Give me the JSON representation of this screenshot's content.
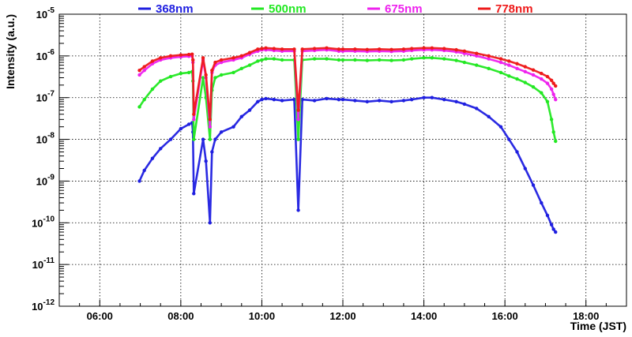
{
  "chart_data": {
    "type": "scatter",
    "title": "",
    "xlabel": "Time (JST)",
    "ylabel": "Intensity (a.u.)",
    "x_unit": "hour of day",
    "xlim": [
      5.0,
      19.0
    ],
    "ylim_log10": [
      -12,
      -5
    ],
    "y_scale": "log",
    "grid": true,
    "x_ticks": [
      {
        "value": 6,
        "label": "06:00"
      },
      {
        "value": 8,
        "label": "08:00"
      },
      {
        "value": 10,
        "label": "10:00"
      },
      {
        "value": 12,
        "label": "12:00"
      },
      {
        "value": 14,
        "label": "14:00"
      },
      {
        "value": 16,
        "label": "16:00"
      },
      {
        "value": 18,
        "label": "18:00"
      }
    ],
    "y_ticks": [
      {
        "exp": -5,
        "base": "10",
        "power": "-5"
      },
      {
        "exp": -6,
        "base": "10",
        "power": "-6"
      },
      {
        "exp": -7,
        "base": "10",
        "power": "-7"
      },
      {
        "exp": -8,
        "base": "10",
        "power": "-8"
      },
      {
        "exp": -9,
        "base": "10",
        "power": "-9"
      },
      {
        "exp": -10,
        "base": "10",
        "power": "-10"
      },
      {
        "exp": -11,
        "base": "10",
        "power": "-11"
      },
      {
        "exp": -12,
        "base": "10",
        "power": "-12"
      }
    ],
    "legend_position": "top",
    "series": [
      {
        "name": "368nm",
        "color": "#1f1fe0",
        "x": [
          6.98,
          7.1,
          7.3,
          7.5,
          7.75,
          8.0,
          8.2,
          8.28,
          8.3,
          8.32,
          8.55,
          8.62,
          8.72,
          8.77,
          8.85,
          9.0,
          9.3,
          9.5,
          9.7,
          9.9,
          10.0,
          10.1,
          10.3,
          10.5,
          10.8,
          10.9,
          11.0,
          11.3,
          11.6,
          11.9,
          12.0,
          12.3,
          12.6,
          12.9,
          13.2,
          13.5,
          13.7,
          14.0,
          14.2,
          14.5,
          14.8,
          15.0,
          15.3,
          15.6,
          15.9,
          16.1,
          16.3,
          16.5,
          16.7,
          16.9,
          17.05,
          17.15,
          17.2,
          17.25
        ],
        "y": [
          1e-09,
          1.8e-09,
          3.5e-09,
          6e-09,
          1e-08,
          1.8e-08,
          2.3e-08,
          2.5e-08,
          1.5e-08,
          5e-10,
          1e-08,
          3e-09,
          1e-10,
          5e-09,
          1e-08,
          1.5e-08,
          2e-08,
          3.5e-08,
          5e-08,
          8e-08,
          9e-08,
          9.5e-08,
          9e-08,
          8.5e-08,
          9e-08,
          2e-10,
          9e-08,
          8.5e-08,
          9.5e-08,
          9e-08,
          9e-08,
          8.5e-08,
          8e-08,
          8.5e-08,
          8e-08,
          8.5e-08,
          9e-08,
          1e-07,
          1e-07,
          9e-08,
          8e-08,
          7e-08,
          5.5e-08,
          3.5e-08,
          2e-08,
          1e-08,
          5e-09,
          2e-09,
          8e-10,
          3e-10,
          1.5e-10,
          9e-11,
          7e-11,
          6e-11
        ]
      },
      {
        "name": "500nm",
        "color": "#22e822",
        "x": [
          6.98,
          7.1,
          7.3,
          7.5,
          7.75,
          8.0,
          8.2,
          8.28,
          8.3,
          8.32,
          8.55,
          8.62,
          8.72,
          8.77,
          8.85,
          9.0,
          9.3,
          9.5,
          9.7,
          9.9,
          10.0,
          10.1,
          10.3,
          10.5,
          10.8,
          10.9,
          11.0,
          11.3,
          11.6,
          11.9,
          12.0,
          12.3,
          12.6,
          12.9,
          13.2,
          13.5,
          13.7,
          14.0,
          14.2,
          14.5,
          14.8,
          15.0,
          15.3,
          15.6,
          15.9,
          16.1,
          16.3,
          16.5,
          16.7,
          16.9,
          17.05,
          17.15,
          17.2,
          17.25
        ],
        "y": [
          6e-08,
          9e-08,
          1.6e-07,
          2.5e-07,
          3.2e-07,
          3.8e-07,
          4e-07,
          4.2e-07,
          2.5e-07,
          1e-08,
          3e-07,
          1e-07,
          1e-08,
          1.5e-07,
          3e-07,
          3.5e-07,
          4e-07,
          5e-07,
          6e-07,
          7.5e-07,
          8e-07,
          8.5e-07,
          8.5e-07,
          8e-07,
          8e-07,
          1e-08,
          8e-07,
          8.5e-07,
          8.5e-07,
          8e-07,
          8e-07,
          8e-07,
          7.8e-07,
          8e-07,
          7.8e-07,
          8e-07,
          8.5e-07,
          9e-07,
          9e-07,
          8.5e-07,
          7.8e-07,
          7e-07,
          6e-07,
          5e-07,
          4e-07,
          3.3e-07,
          2.8e-07,
          2.3e-07,
          1.8e-07,
          1.3e-07,
          8e-08,
          3e-08,
          1.5e-08,
          9e-09
        ]
      },
      {
        "name": "675nm",
        "color": "#ee22ee",
        "x": [
          6.98,
          7.1,
          7.3,
          7.5,
          7.75,
          8.0,
          8.2,
          8.28,
          8.3,
          8.32,
          8.55,
          8.62,
          8.72,
          8.77,
          8.85,
          9.0,
          9.3,
          9.5,
          9.7,
          9.9,
          10.0,
          10.1,
          10.3,
          10.5,
          10.8,
          10.9,
          11.0,
          11.3,
          11.6,
          11.9,
          12.0,
          12.3,
          12.6,
          12.9,
          13.2,
          13.5,
          13.7,
          14.0,
          14.2,
          14.5,
          14.8,
          15.0,
          15.3,
          15.6,
          15.9,
          16.1,
          16.3,
          16.5,
          16.7,
          16.9,
          17.05,
          17.15,
          17.2,
          17.25
        ],
        "y": [
          3.5e-07,
          4.5e-07,
          6.5e-07,
          8e-07,
          9e-07,
          9.5e-07,
          9.8e-07,
          1e-06,
          7e-07,
          3e-08,
          8e-07,
          3e-07,
          2e-08,
          4e-07,
          6e-07,
          7e-07,
          8e-07,
          9e-07,
          1.1e-06,
          1.3e-06,
          1.4e-06,
          1.4e-06,
          1.35e-06,
          1.3e-06,
          1.3e-06,
          3e-08,
          1.3e-06,
          1.35e-06,
          1.4e-06,
          1.3e-06,
          1.3e-06,
          1.3e-06,
          1.28e-06,
          1.3e-06,
          1.28e-06,
          1.3e-06,
          1.35e-06,
          1.4e-06,
          1.4e-06,
          1.35e-06,
          1.25e-06,
          1.15e-06,
          1e-06,
          8.5e-07,
          7e-07,
          6e-07,
          5e-07,
          4.2e-07,
          3.5e-07,
          2.8e-07,
          2.2e-07,
          1.6e-07,
          1.2e-07,
          9e-08
        ]
      },
      {
        "name": "778nm",
        "color": "#ee1a1a",
        "x": [
          6.98,
          7.1,
          7.3,
          7.5,
          7.75,
          8.0,
          8.2,
          8.28,
          8.3,
          8.32,
          8.55,
          8.62,
          8.72,
          8.77,
          8.85,
          9.0,
          9.3,
          9.5,
          9.7,
          9.9,
          10.0,
          10.1,
          10.3,
          10.5,
          10.8,
          10.9,
          11.0,
          11.3,
          11.6,
          11.9,
          12.0,
          12.3,
          12.6,
          12.9,
          13.2,
          13.5,
          13.7,
          14.0,
          14.2,
          14.5,
          14.8,
          15.0,
          15.3,
          15.6,
          15.9,
          16.1,
          16.3,
          16.5,
          16.7,
          16.9,
          17.05,
          17.15,
          17.2,
          17.25
        ],
        "y": [
          4.5e-07,
          5.5e-07,
          7.5e-07,
          9e-07,
          1e-06,
          1.05e-06,
          1.08e-06,
          1.1e-06,
          8e-07,
          4e-08,
          9e-07,
          3.5e-07,
          3e-08,
          4.5e-07,
          7e-07,
          8e-07,
          9e-07,
          1e-06,
          1.2e-06,
          1.45e-06,
          1.5e-06,
          1.55e-06,
          1.5e-06,
          1.45e-06,
          1.45e-06,
          5e-08,
          1.45e-06,
          1.5e-06,
          1.55e-06,
          1.45e-06,
          1.45e-06,
          1.45e-06,
          1.42e-06,
          1.45e-06,
          1.42e-06,
          1.45e-06,
          1.5e-06,
          1.55e-06,
          1.55e-06,
          1.5e-06,
          1.4e-06,
          1.3e-06,
          1.15e-06,
          1e-06,
          8.5e-07,
          7.5e-07,
          6.5e-07,
          5.5e-07,
          4.6e-07,
          3.8e-07,
          3.2e-07,
          2.6e-07,
          2.2e-07,
          1.9e-07
        ]
      }
    ]
  }
}
